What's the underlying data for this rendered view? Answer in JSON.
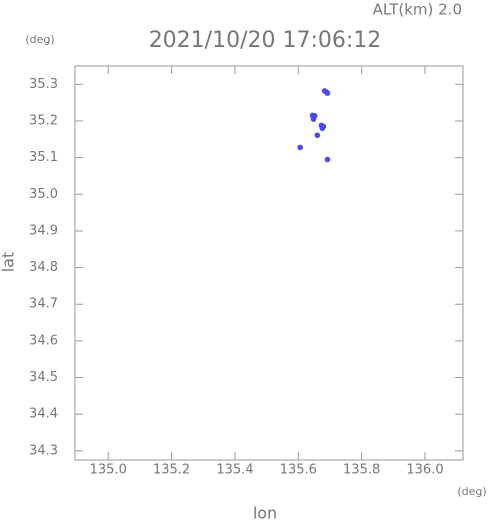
{
  "chart_data": {
    "type": "scatter",
    "title": "2021/10/20 17:06:12",
    "annotation": "ALT(km) 2.0",
    "x_unit": "(deg)",
    "y_unit": "(deg)",
    "x_label": "lon",
    "y_label": "lat",
    "xlim": [
      134.895,
      136.12
    ],
    "ylim": [
      34.275,
      35.35
    ],
    "xticks": [
      {
        "value": 135.0,
        "label": "135.0"
      },
      135.2,
      135.4,
      135.6,
      135.8,
      {
        "value": 136.0,
        "label": "136.0"
      }
    ],
    "yticks": [
      34.3,
      34.4,
      34.5,
      34.6,
      34.7,
      34.8,
      34.9,
      {
        "value": 35.0,
        "label": "35.0"
      },
      35.1,
      35.2,
      35.3
    ],
    "series": [
      {
        "color": "#4a4af0",
        "x": [
          135.683,
          135.689,
          135.692,
          135.645,
          135.652,
          135.648,
          135.673,
          135.679,
          135.676,
          135.66,
          135.606,
          135.692
        ],
        "y": [
          35.282,
          35.279,
          35.276,
          35.215,
          35.214,
          35.205,
          35.188,
          35.185,
          35.18,
          35.161,
          35.128,
          35.095
        ]
      }
    ]
  }
}
